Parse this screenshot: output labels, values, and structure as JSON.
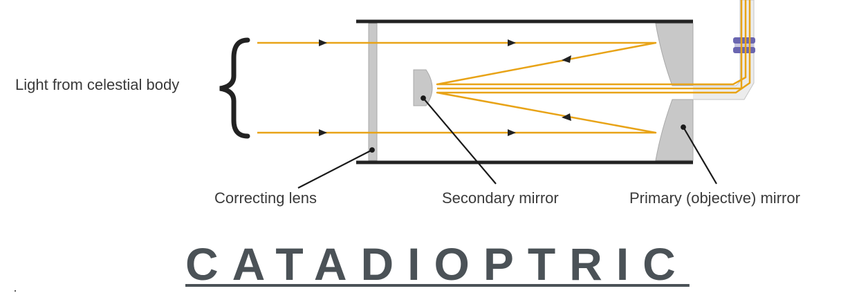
{
  "diagram": {
    "labels": {
      "light_source": "Light from celestial body",
      "correcting_lens": "Correcting lens",
      "secondary_mirror": "Secondary mirror",
      "primary_mirror": "Primary (objective) mirror"
    },
    "title": "CATADIOPTRIC"
  },
  "colors": {
    "light_ray": "#e8a317",
    "tube": "#222222",
    "optic_fill": "#c8c8c8",
    "optic_stroke": "#a8a8a8",
    "leader_line": "#1a1a1a",
    "eyepiece_band": "#6a66b0",
    "title_text": "#4b5257"
  },
  "icons": [
    "curly-brace-icon",
    "ray-arrow-icon",
    "eyepiece-icon"
  ]
}
